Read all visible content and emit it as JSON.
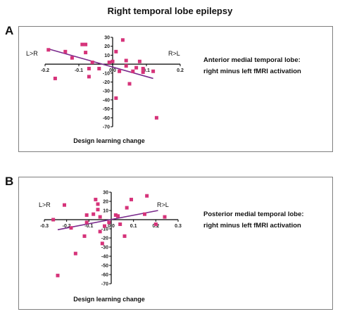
{
  "figure_title": "Right temporal lobe epilepsy",
  "chart_data": [
    {
      "type": "scatter",
      "panel": "A",
      "title": "",
      "caption_lines": [
        "Anterior medial temporal lobe:",
        "right minus left fMRI activation"
      ],
      "xlabel": "Design learning change",
      "ylabel": "",
      "left_label": "L>R",
      "right_label": "R>L",
      "xlim": [
        -0.2,
        0.2
      ],
      "ylim": [
        -70,
        30
      ],
      "x_tick_labels": [
        "-0.2",
        "-0.1",
        "0.0",
        "0.1",
        "0.2"
      ],
      "y_tick_labels": [
        "30",
        "20",
        "10",
        "0",
        "-10",
        "-20",
        "-30",
        "-40",
        "-50",
        "-60",
        "-70"
      ],
      "grid": false,
      "marker_color": "#d6337a",
      "line_color": "#7a2a8c",
      "points": [
        {
          "x": -0.19,
          "y": 16
        },
        {
          "x": -0.17,
          "y": -16
        },
        {
          "x": -0.14,
          "y": 14
        },
        {
          "x": -0.12,
          "y": 7
        },
        {
          "x": -0.09,
          "y": 22
        },
        {
          "x": -0.08,
          "y": 22
        },
        {
          "x": -0.08,
          "y": 13
        },
        {
          "x": -0.07,
          "y": -5
        },
        {
          "x": -0.07,
          "y": -14
        },
        {
          "x": -0.06,
          "y": 2
        },
        {
          "x": -0.04,
          "y": -5
        },
        {
          "x": -0.01,
          "y": 2
        },
        {
          "x": 0.0,
          "y": 3
        },
        {
          "x": 0.01,
          "y": 14
        },
        {
          "x": 0.01,
          "y": -38
        },
        {
          "x": 0.02,
          "y": -8
        },
        {
          "x": 0.03,
          "y": 27
        },
        {
          "x": 0.04,
          "y": -2
        },
        {
          "x": 0.04,
          "y": 4
        },
        {
          "x": 0.05,
          "y": -22
        },
        {
          "x": 0.06,
          "y": -8
        },
        {
          "x": 0.07,
          "y": -4
        },
        {
          "x": 0.08,
          "y": 3
        },
        {
          "x": 0.09,
          "y": -5
        },
        {
          "x": 0.09,
          "y": -9
        },
        {
          "x": 0.12,
          "y": -8
        },
        {
          "x": 0.13,
          "y": -60
        }
      ],
      "fit_line": {
        "x": [
          -0.19,
          0.12
        ],
        "y": [
          17,
          -16
        ]
      }
    },
    {
      "type": "scatter",
      "panel": "B",
      "title": "",
      "caption_lines": [
        "Posterior medial temporal lobe:",
        "right minus left fMRI activation"
      ],
      "xlabel": "Design learning change",
      "ylabel": "",
      "left_label": "L>R",
      "right_label": "R>L",
      "xlim": [
        -0.3,
        0.3
      ],
      "ylim": [
        -70,
        30
      ],
      "x_tick_labels": [
        "-0.3",
        "-0.2",
        "-0.1",
        "0.0",
        "0.1",
        "0.2",
        "0.3"
      ],
      "y_tick_labels": [
        "30",
        "20",
        "10",
        "0",
        "-10",
        "-20",
        "-30",
        "-40",
        "-50",
        "-60",
        "-70"
      ],
      "grid": false,
      "marker_color": "#d6337a",
      "line_color": "#7a2a8c",
      "points": [
        {
          "x": -0.26,
          "y": 0
        },
        {
          "x": -0.24,
          "y": -61
        },
        {
          "x": -0.21,
          "y": 16
        },
        {
          "x": -0.18,
          "y": -9
        },
        {
          "x": -0.16,
          "y": -37
        },
        {
          "x": -0.12,
          "y": -18
        },
        {
          "x": -0.11,
          "y": -3
        },
        {
          "x": -0.11,
          "y": 5
        },
        {
          "x": -0.08,
          "y": 6
        },
        {
          "x": -0.07,
          "y": 22
        },
        {
          "x": -0.06,
          "y": 17
        },
        {
          "x": -0.06,
          "y": 11
        },
        {
          "x": -0.05,
          "y": 3
        },
        {
          "x": -0.05,
          "y": -13
        },
        {
          "x": -0.04,
          "y": -26
        },
        {
          "x": -0.03,
          "y": -7
        },
        {
          "x": -0.01,
          "y": -3
        },
        {
          "x": 0.02,
          "y": 5
        },
        {
          "x": 0.03,
          "y": 4
        },
        {
          "x": 0.04,
          "y": -5
        },
        {
          "x": 0.06,
          "y": -18
        },
        {
          "x": 0.07,
          "y": 13
        },
        {
          "x": 0.09,
          "y": 22
        },
        {
          "x": 0.15,
          "y": 6
        },
        {
          "x": 0.16,
          "y": 26
        },
        {
          "x": 0.2,
          "y": -5
        },
        {
          "x": 0.24,
          "y": 3
        }
      ],
      "fit_line": {
        "x": [
          -0.24,
          0.21
        ],
        "y": [
          -11,
          10
        ]
      }
    }
  ]
}
